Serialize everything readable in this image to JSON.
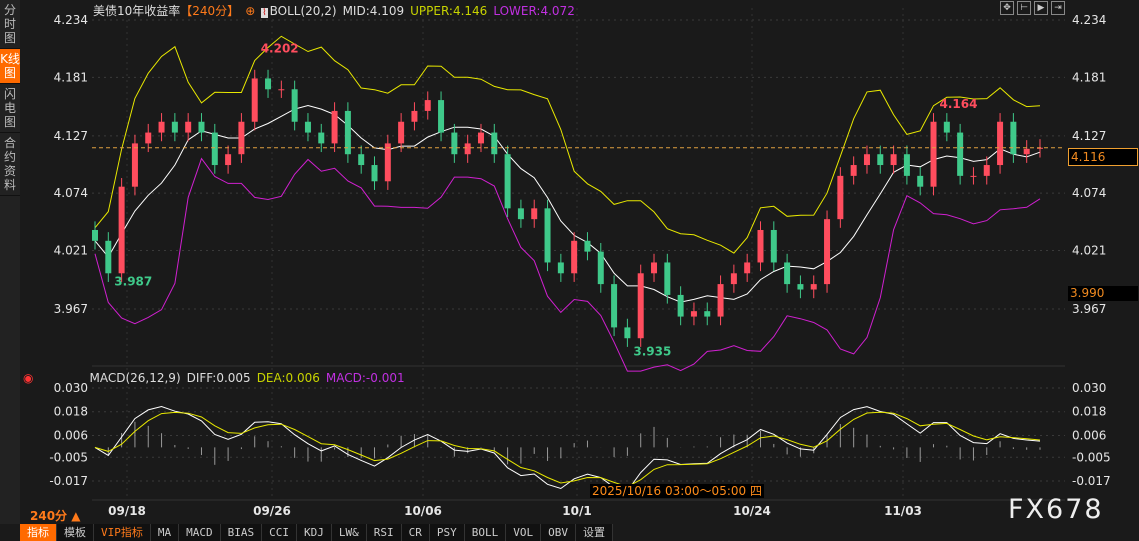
{
  "sidebar": {
    "items": [
      {
        "label": "分时图"
      },
      {
        "label": "K线图",
        "active": true
      },
      {
        "label": "闪电图"
      },
      {
        "label": "合约资料"
      }
    ]
  },
  "header": {
    "instrument": "美债10年收益率",
    "period": "【240分】",
    "boll": "BOLL(20,2)",
    "mid": "MID:4.109",
    "upper": "UPPER:4.146",
    "lower": "LOWER:4.072"
  },
  "toolbar_icons": [
    "crosshair-icon",
    "fit-left-icon",
    "play-right-icon",
    "scroll-end-icon"
  ],
  "macd_header": {
    "label": "MACD(26,12,9)",
    "diff": "DIFF:0.005",
    "dea": "DEA:0.006",
    "macd": "MACD:-0.001"
  },
  "colors": {
    "up": "#ff4d5e",
    "down": "#3fc98a",
    "mid": "#ffffff",
    "upper": "#e8e800",
    "lower": "#d020d0",
    "accent": "#ff6a00"
  },
  "current_price": "4.116",
  "crosshair_price": "3.990",
  "crosshair_time": "2025/10/16 03:00～05:00 四",
  "period_selector": "240分 ▲",
  "watermark": "FX678",
  "bottom_tabs": [
    "指标",
    "模板",
    "VIP指标",
    "MA",
    "MACD",
    "BIAS",
    "CCI",
    "KDJ",
    "LW&",
    "RSI",
    "CR",
    "PSY",
    "BOLL",
    "VOL",
    "OBV",
    "设置"
  ],
  "chart_data": [
    {
      "type": "candlestick",
      "ylim": [
        3.967,
        4.234
      ],
      "yticks": [
        "4.234",
        "4.181",
        "4.127",
        "4.074",
        "4.021",
        "3.967"
      ],
      "xticks": [
        "09/18",
        "09/26",
        "10/06",
        "10/1",
        "10/24",
        "11/03"
      ],
      "annotations": {
        "high": "4.202",
        "low": "3.935",
        "left_low": "3.987",
        "right_high": "4.164"
      },
      "closes": [
        4.03,
        4.0,
        4.08,
        4.12,
        4.13,
        4.14,
        4.13,
        4.14,
        4.13,
        4.1,
        4.11,
        4.14,
        4.18,
        4.17,
        4.17,
        4.14,
        4.13,
        4.12,
        4.15,
        4.11,
        4.1,
        4.085,
        4.12,
        4.14,
        4.15,
        4.16,
        4.13,
        4.11,
        4.12,
        4.13,
        4.11,
        4.06,
        4.05,
        4.06,
        4.01,
        4.0,
        4.03,
        4.02,
        3.99,
        3.95,
        3.94,
        4.0,
        4.01,
        3.98,
        3.96,
        3.965,
        3.96,
        3.99,
        4.0,
        4.01,
        4.04,
        4.01,
        3.99,
        3.985,
        3.99,
        4.05,
        4.09,
        4.1,
        4.11,
        4.1,
        4.11,
        4.09,
        4.08,
        4.14,
        4.13,
        4.09,
        4.09,
        4.1,
        4.14,
        4.11,
        4.115,
        4.116
      ]
    },
    {
      "type": "macd",
      "ylim": [
        -0.017,
        0.03
      ],
      "yticks": [
        "0.030",
        "0.018",
        "0.006",
        "-0.005",
        "-0.017"
      ]
    }
  ]
}
